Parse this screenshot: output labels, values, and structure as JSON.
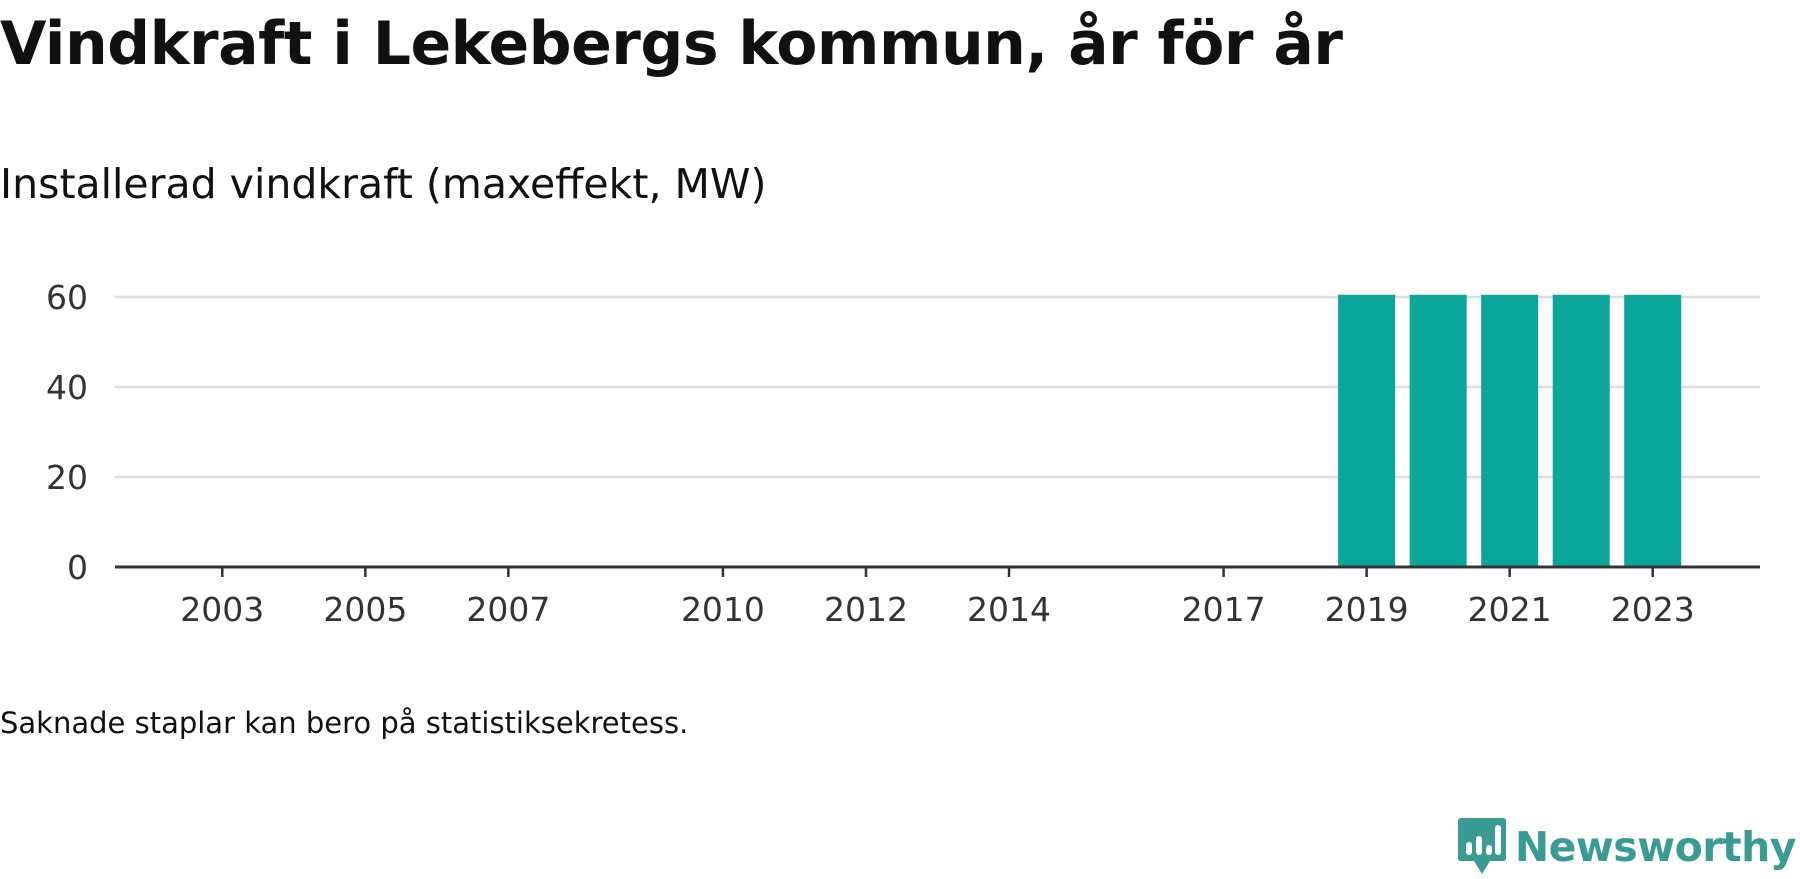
{
  "header": {
    "title": "Vindkraft i Lekebergs kommun, år för år",
    "subtitle": "Installerad vindkraft (maxeffekt, MW)"
  },
  "footer": {
    "note": "Saknade staplar kan bero på statistiksekretess.",
    "brand_name": "Newsworthy",
    "brand_icon": "chart-bubble-logo-icon"
  },
  "colors": {
    "bar": "#0aa59b",
    "brand": "#3a9b94",
    "grid": "#dddddd",
    "axis": "#333333"
  },
  "chart_data": {
    "type": "bar",
    "title": "Vindkraft i Lekebergs kommun, år för år",
    "subtitle": "Installerad vindkraft (maxeffekt, MW)",
    "xlabel": "",
    "ylabel": "",
    "x_ticks": [
      "2003",
      "2005",
      "2007",
      "2010",
      "2012",
      "2014",
      "2017",
      "2019",
      "2021",
      "2023"
    ],
    "y_ticks": [
      0,
      20,
      40,
      60
    ],
    "ylim": [
      0,
      60
    ],
    "xlim": [
      2001.5,
      2024.5
    ],
    "grid": true,
    "legend": "none",
    "categories": [
      "2019",
      "2020",
      "2021",
      "2022",
      "2023"
    ],
    "values": [
      60.5,
      60.5,
      60.5,
      60.5,
      60.5
    ]
  }
}
